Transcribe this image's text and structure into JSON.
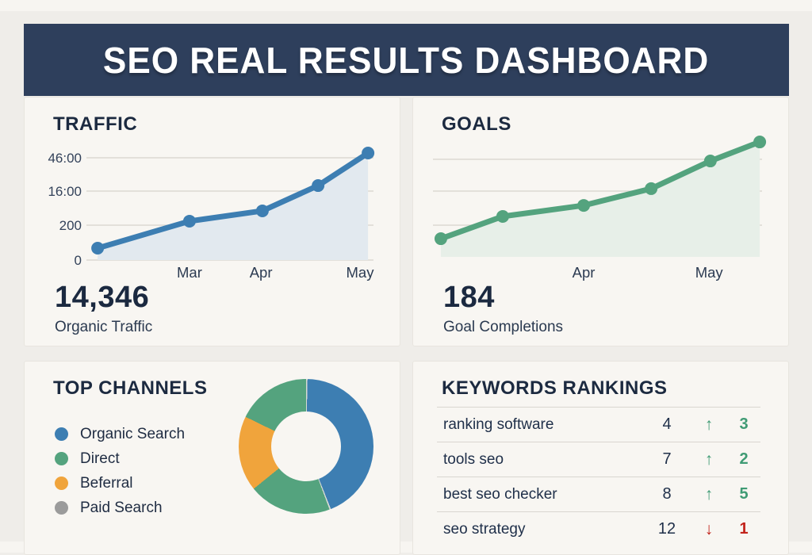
{
  "header": {
    "title": "SEO REAL RESULTS DASHBOARD"
  },
  "colors": {
    "navy": "#2e3f5c",
    "blue": "#3d7eb2",
    "green": "#54a37e",
    "orange": "#f0a43c",
    "gray": "#9b9b9b",
    "hairline": "#d7dad4",
    "grid": "#dcd8d2",
    "green_text": "#3f9b74",
    "red": "#c2231b",
    "blue_fill": "#e2e9ef",
    "green_fill": "#e7efe8"
  },
  "chart_data": [
    {
      "id": "traffic",
      "type": "line",
      "title": "TRAFFIC",
      "summary_value": "14,346",
      "summary_label": "Organic Traffic",
      "color_key": "blue",
      "fill_key": "blue_fill",
      "grid_on": true,
      "y_tick_labels": [
        {
          "label": "46:00",
          "y": 0.902
        },
        {
          "label": "16:00",
          "y": 0.608
        },
        {
          "label": "200",
          "y": 0.308
        },
        {
          "label": "0",
          "y": 0.0
        }
      ],
      "x_tick_labels": [
        {
          "label": "Mar",
          "x": 0.359
        },
        {
          "label": "Apr",
          "x": 0.608
        },
        {
          "label": "May",
          "x": 0.953
        }
      ],
      "series": [
        {
          "name": "Organic Traffic",
          "points": [
            {
              "x": 0.039,
              "y": 0.105
            },
            {
              "x": 0.359,
              "y": 0.343
            },
            {
              "x": 0.613,
              "y": 0.434
            },
            {
              "x": 0.807,
              "y": 0.657
            },
            {
              "x": 0.981,
              "y": 0.944
            }
          ]
        }
      ]
    },
    {
      "id": "goals",
      "type": "line",
      "title": "GOALS",
      "summary_value": "184",
      "summary_label": "Goal Completions",
      "color_key": "green",
      "fill_key": "green_fill",
      "grid_on": true,
      "y_tick_labels": [
        {
          "label": "",
          "y": 0.815
        },
        {
          "label": "",
          "y": 0.55
        },
        {
          "label": "",
          "y": 0.265
        }
      ],
      "x_tick_labels": [
        {
          "label": "Apr",
          "x": 0.458
        },
        {
          "label": "May",
          "x": 0.839
        }
      ],
      "series": [
        {
          "name": "Goal Completions",
          "points": [
            {
              "x": 0.024,
              "y": 0.152
            },
            {
              "x": 0.212,
              "y": 0.338
            },
            {
              "x": 0.458,
              "y": 0.43
            },
            {
              "x": 0.663,
              "y": 0.57
            },
            {
              "x": 0.843,
              "y": 0.801
            },
            {
              "x": 0.993,
              "y": 0.96
            }
          ]
        }
      ]
    },
    {
      "id": "channels",
      "type": "pie",
      "title": "TOP CHANNELS",
      "donut_hole_ratio": 0.52,
      "legend": [
        {
          "label": "Organic Search",
          "color_key": "blue"
        },
        {
          "label": "Direct",
          "color_key": "green"
        },
        {
          "label": "Beferral",
          "color_key": "orange"
        },
        {
          "label": "Paid Search",
          "color_key": "gray"
        }
      ],
      "slices": [
        {
          "name": "Organic Search",
          "percent": 44
        },
        {
          "name": "Direct",
          "percent": 38
        },
        {
          "name": "Referral",
          "percent": 18
        },
        {
          "name": "Paid Search",
          "percent": 0
        }
      ],
      "arcs_deg": [
        {
          "color_key": "hairline",
          "start": 0,
          "end": 1.2
        },
        {
          "color_key": "blue",
          "start": 1.2,
          "end": 158.4
        },
        {
          "color_key": "hairline",
          "start": 158.4,
          "end": 159.6
        },
        {
          "color_key": "green",
          "start": 159.6,
          "end": 231
        },
        {
          "color_key": "orange",
          "start": 231,
          "end": 296
        },
        {
          "color_key": "green",
          "start": 296,
          "end": 360
        }
      ]
    },
    {
      "id": "keywords",
      "type": "table",
      "title": "KEYWORDS RANKINGS",
      "columns": [
        "keyword",
        "position",
        "trend",
        "change"
      ],
      "rows": [
        {
          "keyword": "ranking software",
          "position": "4",
          "trend": "up",
          "arrow": "↑",
          "change": "3"
        },
        {
          "keyword": "tools seo",
          "position": "7",
          "trend": "up",
          "arrow": "↑",
          "change": "2"
        },
        {
          "keyword": "best seo checker",
          "position": "8",
          "trend": "up",
          "arrow": "↑",
          "change": "5"
        },
        {
          "keyword": "seo strategy",
          "position": "12",
          "trend": "down",
          "arrow": "↓",
          "change": "1"
        }
      ]
    }
  ]
}
